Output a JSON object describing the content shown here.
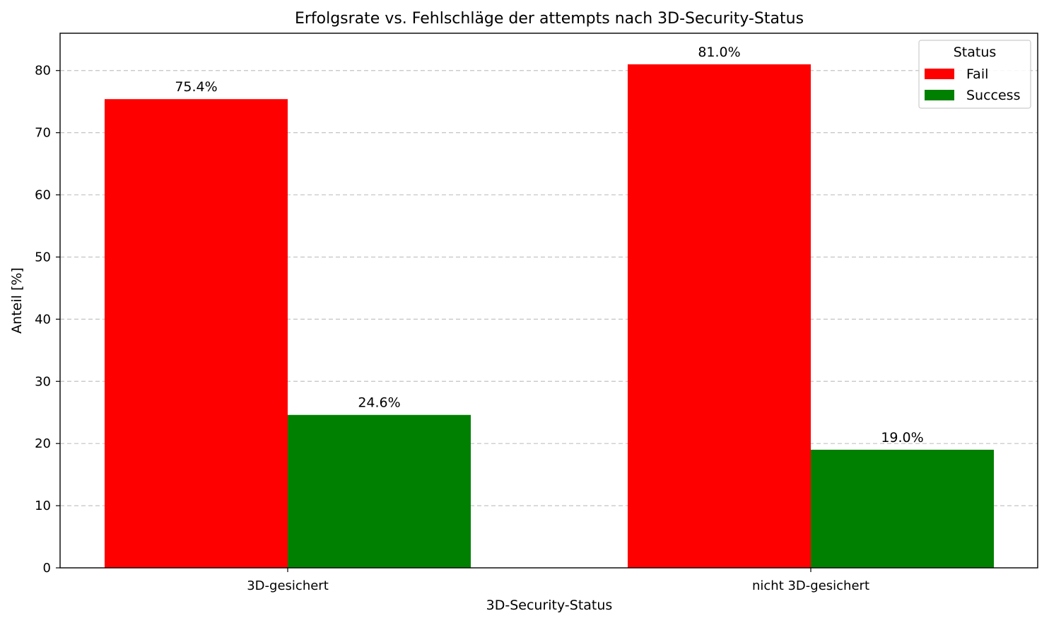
{
  "chart_data": {
    "type": "bar",
    "title": "Erfolgsrate vs. Fehlschläge der attempts nach 3D-Security-Status",
    "xlabel": "3D-Security-Status",
    "ylabel": "Anteil [%]",
    "categories": [
      "3D-gesichert",
      "nicht 3D-gesichert"
    ],
    "series": [
      {
        "name": "Fail",
        "values": [
          75.4,
          81.0
        ],
        "labels": [
          "75.4%",
          "81.0%"
        ],
        "color": "#ff0000"
      },
      {
        "name": "Success",
        "values": [
          24.6,
          19.0
        ],
        "labels": [
          "24.6%",
          "19.0%"
        ],
        "color": "#008000"
      }
    ],
    "ylim": [
      0,
      86
    ],
    "yticks": [
      0,
      10,
      20,
      30,
      40,
      50,
      60,
      70,
      80
    ],
    "grid": "y-dashed",
    "legend": {
      "title": "Status",
      "placement": "top-right"
    }
  }
}
